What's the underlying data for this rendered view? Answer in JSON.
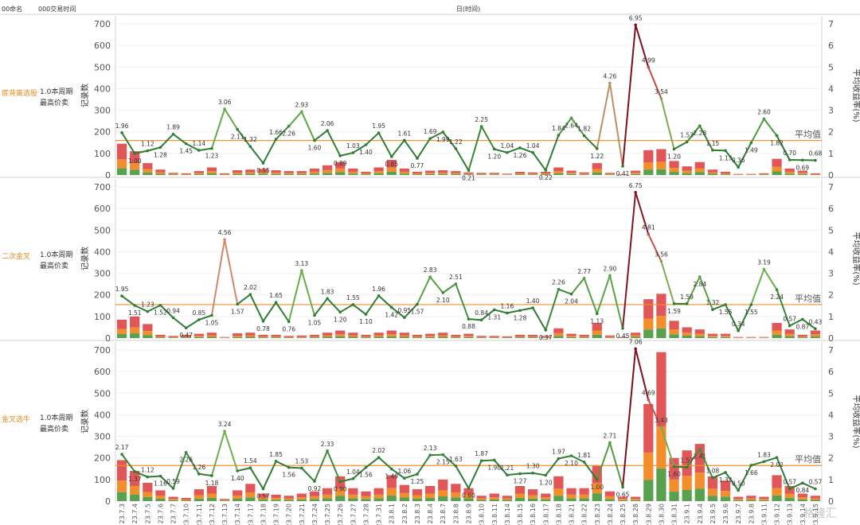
{
  "header": {
    "col1": "00命名",
    "col2": "000交易时间",
    "center": "日(时间)"
  },
  "axis": {
    "left_label": "记录数",
    "right_label": "平均收益率(%)",
    "left_ticks": [
      0,
      100,
      200,
      300,
      400,
      500,
      600,
      700
    ],
    "right_ticks": [
      0,
      1,
      2,
      3,
      4,
      5,
      6,
      7
    ],
    "avg_label": "平均值"
  },
  "dates": [
    "23.7.3",
    "23.7.4",
    "23.7.5",
    "23.7.6",
    "23.7.7",
    "23.7.10",
    "23.7.11",
    "23.7.12",
    "23.7.13",
    "23.7.14",
    "23.7.17",
    "23.7.18",
    "23.7.19",
    "23.7.20",
    "23.7.21",
    "23.7.24",
    "23.7.25",
    "23.7.26",
    "23.7.27",
    "23.7.28",
    "23.7.31",
    "23.8.1",
    "23.8.2",
    "23.8.3",
    "23.8.4",
    "23.8.7",
    "23.8.8",
    "23.8.9",
    "23.8.10",
    "23.8.11",
    "23.8.14",
    "23.8.15",
    "23.8.16",
    "23.8.17",
    "23.8.18",
    "23.8.21",
    "23.8.22",
    "23.8.23",
    "23.8.24",
    "23.8.25",
    "23.8.28",
    "23.8.29",
    "23.8.30",
    "23.8.31",
    "23.9.1",
    "23.9.4",
    "23.9.5",
    "23.9.6",
    "23.9.7",
    "23.9.8",
    "23.9.11",
    "23.9.12",
    "23.9.13",
    "23.9.14",
    "23.9.15"
  ],
  "watermark": "格隆汇",
  "colors": {
    "red": "#e15759",
    "orange": "#f28e2b",
    "green": "#59a14f",
    "avg": "#f28e2b",
    "line": "#3f8f3f"
  },
  "chart_data": [
    {
      "type": "bar+line",
      "strategy": "底背离选股",
      "period": "1.0本周期",
      "sell": "最高价卖",
      "ylim_left": [
        0,
        700
      ],
      "ylim_right": [
        0,
        7
      ],
      "avg_return": 1.6,
      "bars": [
        145,
        110,
        55,
        25,
        10,
        8,
        18,
        35,
        8,
        22,
        25,
        28,
        22,
        18,
        18,
        30,
        45,
        60,
        30,
        15,
        35,
        70,
        30,
        15,
        20,
        22,
        18,
        12,
        10,
        10,
        6,
        15,
        12,
        15,
        35,
        20,
        12,
        55,
        10,
        4,
        20,
        115,
        120,
        65,
        40,
        60,
        25,
        15,
        5,
        5,
        8,
        75,
        30,
        20,
        8
      ],
      "returns": [
        1.96,
        1.0,
        1.12,
        1.28,
        1.89,
        1.45,
        1.14,
        1.23,
        3.06,
        2.11,
        1.32,
        0.55,
        1.66,
        2.26,
        2.93,
        1.6,
        2.06,
        0.89,
        1.03,
        1.4,
        1.95,
        0.85,
        1.61,
        0.77,
        1.69,
        1.99,
        1.22,
        0.21,
        2.25,
        1.2,
        1.04,
        1.26,
        1.04,
        0.22,
        1.84,
        2.64,
        1.82,
        1.22,
        4.26,
        0.41,
        6.95,
        4.99,
        3.54,
        1.2,
        1.53,
        2.28,
        1.15,
        1.13,
        0.36,
        1.49,
        2.6,
        1.82,
        0.7,
        0.69,
        0.68
      ]
    },
    {
      "type": "bar+line",
      "strategy": "二次金叉",
      "period": "1.0本周期",
      "sell": "最高价卖",
      "ylim_left": [
        0,
        700
      ],
      "ylim_right": [
        0,
        7
      ],
      "avg_return": 1.55,
      "bars": [
        85,
        100,
        65,
        15,
        10,
        15,
        20,
        25,
        5,
        22,
        25,
        15,
        15,
        10,
        12,
        15,
        25,
        35,
        25,
        15,
        25,
        35,
        25,
        15,
        20,
        25,
        15,
        20,
        10,
        10,
        8,
        15,
        15,
        10,
        45,
        20,
        15,
        70,
        12,
        5,
        25,
        180,
        205,
        80,
        50,
        40,
        20,
        20,
        5,
        5,
        5,
        70,
        40,
        15,
        35
      ],
      "returns": [
        1.95,
        1.51,
        1.23,
        1.52,
        0.94,
        0.47,
        0.85,
        1.05,
        4.56,
        1.57,
        2.02,
        0.78,
        1.65,
        0.76,
        3.13,
        1.05,
        1.83,
        1.2,
        1.55,
        1.1,
        1.96,
        1.42,
        0.95,
        1.57,
        2.83,
        2.1,
        2.51,
        0.88,
        0.84,
        1.31,
        1.16,
        1.28,
        1.4,
        0.37,
        2.26,
        2.04,
        2.77,
        1.13,
        2.9,
        0.45,
        6.75,
        4.81,
        3.56,
        1.59,
        1.59,
        2.84,
        1.32,
        1.55,
        0.34,
        1.55,
        3.19,
        2.24,
        0.57,
        0.87,
        0.43
      ]
    },
    {
      "type": "bar+line",
      "strategy": "金叉选牛",
      "period": "1.0本周期",
      "sell": "最高价卖",
      "ylim_left": [
        0,
        700
      ],
      "ylim_right": [
        0,
        7
      ],
      "avg_return": 1.65,
      "bars": [
        190,
        140,
        85,
        50,
        20,
        15,
        55,
        70,
        10,
        50,
        80,
        35,
        30,
        25,
        35,
        45,
        60,
        115,
        60,
        45,
        60,
        120,
        75,
        55,
        70,
        100,
        80,
        60,
        25,
        35,
        25,
        70,
        55,
        35,
        115,
        60,
        60,
        165,
        45,
        20,
        20,
        450,
        690,
        200,
        235,
        265,
        115,
        95,
        20,
        25,
        20,
        120,
        70,
        35,
        25
      ],
      "returns": [
        2.17,
        1.37,
        1.12,
        1.16,
        0.59,
        2.26,
        1.26,
        1.18,
        3.24,
        1.4,
        1.54,
        0.57,
        1.85,
        1.56,
        1.53,
        0.92,
        2.33,
        0.9,
        1.04,
        1.56,
        2.02,
        1.49,
        1.06,
        1.25,
        2.13,
        2.15,
        1.63,
        0.6,
        1.87,
        1.9,
        1.21,
        1.27,
        1.3,
        1.2,
        1.97,
        2.1,
        1.81,
        1.0,
        2.71,
        0.65,
        7.06,
        4.69,
        3.43,
        1.6,
        1.57,
        2.41,
        1.08,
        1.33,
        0.5,
        1.66,
        1.83,
        2.02,
        0.57,
        0.84,
        0.57
      ]
    }
  ]
}
